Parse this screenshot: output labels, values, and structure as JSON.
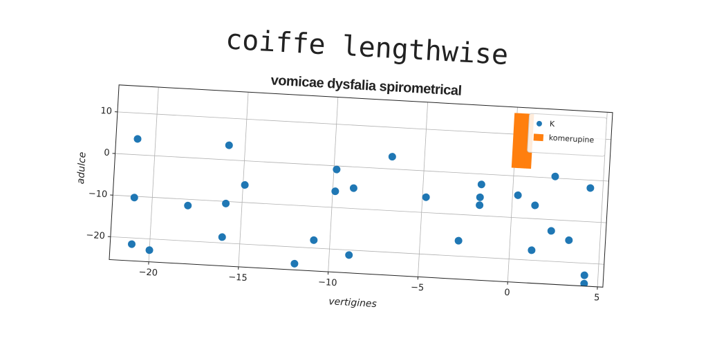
{
  "chart_data": {
    "type": "scatter",
    "title": "coiffe lengthwise",
    "subtitle": "vomicae dysfalia spirometrical",
    "x_label": "vertigines",
    "y_label": "adulce",
    "xlim": [
      -22.2,
      5.3
    ],
    "ylim": [
      -25.5,
      16.5
    ],
    "xticks": [
      {
        "value": -20,
        "label": "−20"
      },
      {
        "value": -15,
        "label": "−15"
      },
      {
        "value": -10,
        "label": "−10"
      },
      {
        "value": -5,
        "label": "−5"
      },
      0,
      5
    ],
    "yticks": [
      {
        "value": -20,
        "label": "−20"
      },
      {
        "value": -10,
        "label": "−10"
      },
      0,
      10
    ],
    "grid": true,
    "legend": "upper right",
    "series": [
      {
        "name": "K",
        "type": "scatter",
        "color": "#1f77b4",
        "x": [
          -21.0,
          -21.0,
          -21.0,
          -20.0,
          -18.0,
          -15.9,
          -15.9,
          -16.0,
          -14.9,
          -11.9,
          -10.9,
          -9.85,
          -9.86,
          -8.85,
          -8.9,
          -6.8,
          -4.8,
          -2.86,
          -1.76,
          -1.8,
          -1.8,
          0.3,
          1.28,
          2.31,
          2.26,
          1.23,
          3.27,
          4.3,
          4.24,
          4.25
        ],
        "values": [
          3.8,
          -10.3,
          -21.5,
          -22.7,
          -11.5,
          3.5,
          -10.5,
          -18.6,
          -5.8,
          -24.0,
          -18.1,
          -0.85,
          -6.1,
          -5.1,
          -21.2,
          2.95,
          -6.3,
          -16.3,
          -2.5,
          -5.6,
          -7.5,
          -4.6,
          -6.8,
          0.4,
          -12.7,
          -17.6,
          -14.7,
          -1.9,
          -22.9,
          -24.9
        ]
      },
      {
        "name": "komerupine",
        "type": "bar",
        "color": "#ff7f0e",
        "x": [
          0.05,
          0.4,
          0.75
        ],
        "width": 0.35,
        "bottom": 2,
        "values": [
          15,
          15,
          15
        ]
      }
    ]
  }
}
